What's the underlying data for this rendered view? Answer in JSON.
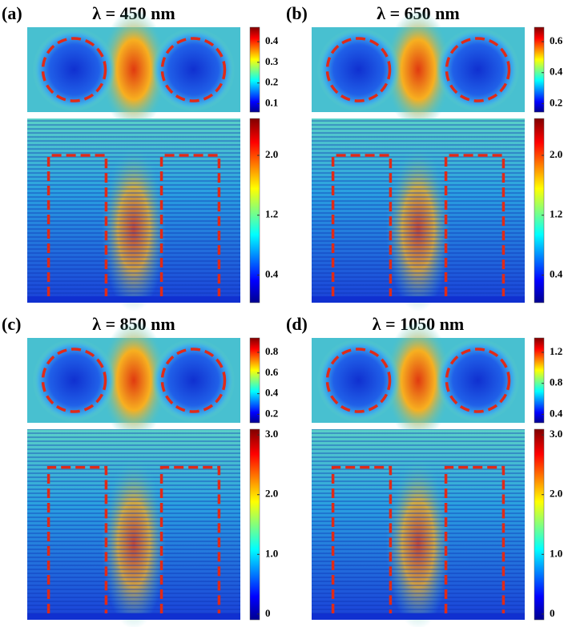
{
  "panels": [
    {
      "label": "(a)",
      "title": "λ = 450 nm",
      "top_colorbar": {
        "ticks": [
          "0.4",
          "0.3",
          "0.2",
          "0.1"
        ]
      },
      "bottom_colorbar": {
        "ticks": [
          "2.0",
          "1.2",
          "0.4"
        ]
      }
    },
    {
      "label": "(b)",
      "title": "λ = 650 nm",
      "top_colorbar": {
        "ticks": [
          "0.6",
          "0.4",
          "0.2"
        ]
      },
      "bottom_colorbar": {
        "ticks": [
          "2.0",
          "1.2",
          "0.4"
        ]
      }
    },
    {
      "label": "(c)",
      "title": "λ = 850 nm",
      "top_colorbar": {
        "ticks": [
          "0.8",
          "0.6",
          "0.4",
          "0.2"
        ]
      },
      "bottom_colorbar": {
        "ticks": [
          "3.0",
          "2.0",
          "1.0",
          "0"
        ]
      }
    },
    {
      "label": "(d)",
      "title": "λ = 1050 nm",
      "top_colorbar": {
        "ticks": [
          "1.2",
          "0.8",
          "0.4"
        ]
      },
      "bottom_colorbar": {
        "ticks": [
          "3.0",
          "2.0",
          "1.0",
          "0"
        ]
      }
    }
  ]
}
